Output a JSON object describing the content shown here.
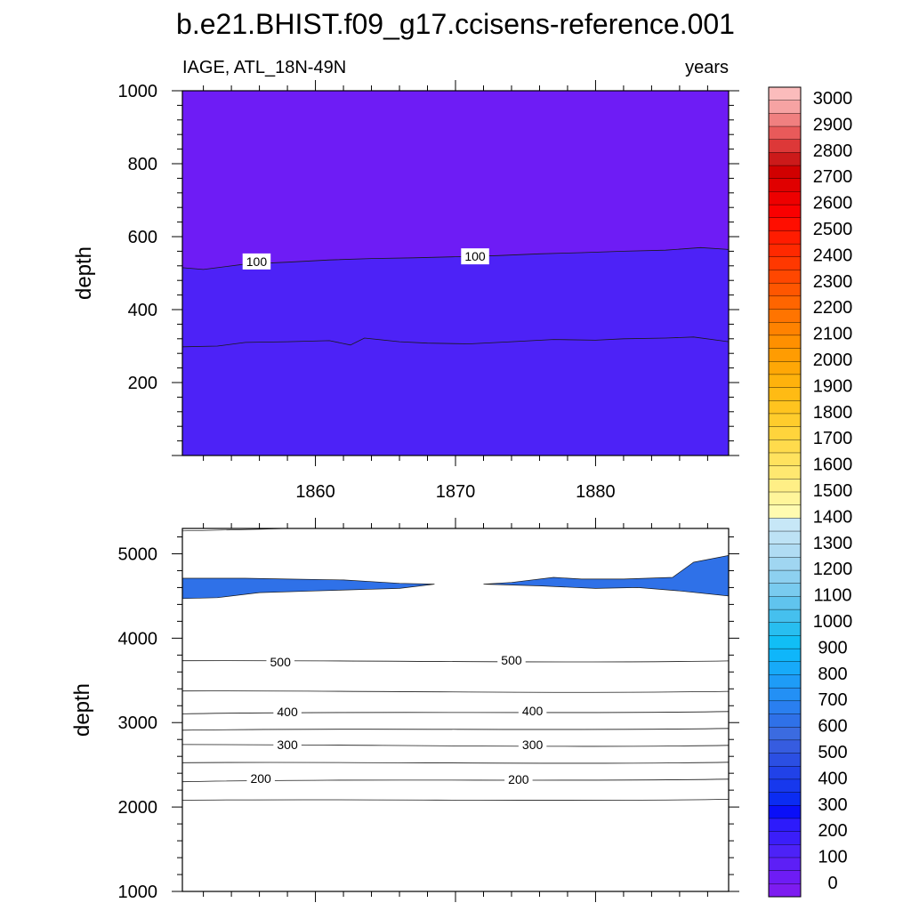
{
  "figure": {
    "title": "b.e21.BHIST.f09_g17.ccisens-reference.001",
    "left_subtitle": "IAGE, ATL_18N-49N",
    "right_subtitle": "years"
  },
  "colors": {
    "frame": "#000000",
    "contour_line": "#1a1a1a",
    "label_bg": "#ffffff"
  },
  "chart_data": [
    {
      "type": "contour",
      "panel": "upper",
      "xlabel": "",
      "ylabel": "depth",
      "xlim": [
        1850.5,
        1889.5
      ],
      "ylim": [
        1000,
        0
      ],
      "xticks": [
        1860,
        1870,
        1880
      ],
      "xtick_labels": [
        "1860",
        "1870",
        "1880"
      ],
      "yticks": [
        200,
        400,
        600,
        800,
        1000
      ],
      "ytick_labels": [
        "200",
        "400",
        "600",
        "800",
        "1000"
      ],
      "fill_bands": [
        {
          "from_depth": 0,
          "to_line": 0,
          "color": "#6e1cf5",
          "level": "50-100"
        },
        {
          "from_line": 0,
          "to_line": 1,
          "color": "#5d1ff6",
          "level": "100-150"
        },
        {
          "from_line": 1,
          "to_depth": 1000,
          "color": "#4d22f7",
          "level": "150-200"
        }
      ],
      "contour_lines": [
        {
          "level": 50,
          "labeled": false,
          "x": [
            1850.5,
            1853,
            1855,
            1858,
            1861,
            1862.5,
            1863.5,
            1866,
            1868,
            1871,
            1874,
            1877,
            1880,
            1882,
            1885,
            1887,
            1889.5
          ],
          "depth": [
            298,
            300,
            310,
            312,
            315,
            303,
            322,
            312,
            308,
            306,
            312,
            318,
            316,
            320,
            322,
            325,
            312
          ]
        },
        {
          "level": 100,
          "labeled": true,
          "x": [
            1850.5,
            1852,
            1855,
            1858,
            1861,
            1864,
            1867,
            1870,
            1873,
            1876,
            1879,
            1882,
            1885,
            1887.5,
            1889.5
          ],
          "depth": [
            515,
            510,
            525,
            530,
            536,
            540,
            542,
            545,
            548,
            553,
            556,
            560,
            563,
            570,
            565
          ]
        }
      ],
      "contour_labels": [
        {
          "text": "100",
          "x": 1855.8,
          "depth": 532
        },
        {
          "text": "100",
          "x": 1871.4,
          "depth": 546
        }
      ]
    },
    {
      "type": "contour",
      "panel": "lower",
      "xlabel": "",
      "ylabel": "depth",
      "xlim": [
        1850.5,
        1889.5
      ],
      "ylim": [
        5300,
        1000
      ],
      "xticks": [
        1860,
        1870,
        1880
      ],
      "xtick_labels": [
        "",
        "",
        ""
      ],
      "yticks": [
        1000,
        2000,
        3000,
        4000,
        5000
      ],
      "ytick_labels": [
        "1000",
        "2000",
        "3000",
        "4000",
        "5000"
      ],
      "bands": [
        {
          "top": 1000,
          "bottom": 2080,
          "color": "#4d22f7"
        },
        {
          "top": 2080,
          "bottom": 2320,
          "color": "#2d1bfb"
        },
        {
          "top": 2320,
          "bottom": 2520,
          "color": "#0a0ff8"
        },
        {
          "top": 2520,
          "bottom": 2720,
          "color": "#0b2cf2"
        },
        {
          "top": 2720,
          "bottom": 2920,
          "color": "#1738ed"
        },
        {
          "top": 2920,
          "bottom": 3120,
          "color": "#2142e8"
        },
        {
          "top": 3120,
          "bottom": 3360,
          "color": "#2b4fe3"
        },
        {
          "top": 3360,
          "bottom": 3720,
          "color": "#365ce0"
        },
        {
          "top": 3720,
          "bottom": 5300,
          "color": "#3b6be0"
        }
      ],
      "contour_depths": [
        2080,
        2320,
        2520,
        2720,
        2920,
        3120,
        3360,
        3720
      ],
      "deep_patch_color": "#2f71e8",
      "contour_labels": [
        {
          "text": "200",
          "x": 1856.1,
          "depth": 2340
        },
        {
          "text": "200",
          "x": 1874.5,
          "depth": 2330
        },
        {
          "text": "300",
          "x": 1858.0,
          "depth": 2740
        },
        {
          "text": "300",
          "x": 1875.5,
          "depth": 2740
        },
        {
          "text": "400",
          "x": 1858.0,
          "depth": 3130
        },
        {
          "text": "400",
          "x": 1875.5,
          "depth": 3140
        },
        {
          "text": "500",
          "x": 1857.5,
          "depth": 3720
        },
        {
          "text": "500",
          "x": 1874.0,
          "depth": 3740
        }
      ]
    },
    {
      "type": "colorbar",
      "levels": [
        "0",
        "100",
        "200",
        "300",
        "400",
        "500",
        "600",
        "700",
        "800",
        "900",
        "1000",
        "1100",
        "1200",
        "1300",
        "1400",
        "1500",
        "1600",
        "1700",
        "1800",
        "1900",
        "2000",
        "2100",
        "2200",
        "2300",
        "2400",
        "2500",
        "2600",
        "2700",
        "2800",
        "2900",
        "3000"
      ],
      "colors": [
        "#7d1cf0",
        "#6e1cf5",
        "#5d1ff6",
        "#4d22f7",
        "#3b1ef9",
        "#2d1bfb",
        "#0a0ff8",
        "#0b2cf2",
        "#1738ed",
        "#2142e8",
        "#2b4fe3",
        "#365ce0",
        "#3b6be0",
        "#2f71e8",
        "#2a7ff0",
        "#2390f5",
        "#1e9cf7",
        "#17aaf9",
        "#0fb6fa",
        "#11bef5",
        "#28bef0",
        "#45c0ee",
        "#60c4ee",
        "#79cbef",
        "#8dd0f0",
        "#a0d6f1",
        "#b0dcf3",
        "#bde2f5",
        "#c7e7f7",
        "#fffbb0",
        "#fff59a",
        "#ffef86",
        "#ffe870",
        "#ffe25e",
        "#ffdb4c",
        "#ffd43c",
        "#ffcc2c",
        "#ffc41f",
        "#ffbb14",
        "#ffb20c",
        "#ffa706",
        "#ff9c02",
        "#ff9000",
        "#ff8200",
        "#ff7400",
        "#ff6500",
        "#ff5600",
        "#ff4700",
        "#ff3800",
        "#ff2900",
        "#ff1c00",
        "#ff0e00",
        "#fa0000",
        "#ee0000",
        "#e00000",
        "#d10000",
        "#cc1a1a",
        "#dd3838",
        "#e85a5a",
        "#f08080",
        "#f6a3a3",
        "#fbbcbc"
      ]
    }
  ]
}
